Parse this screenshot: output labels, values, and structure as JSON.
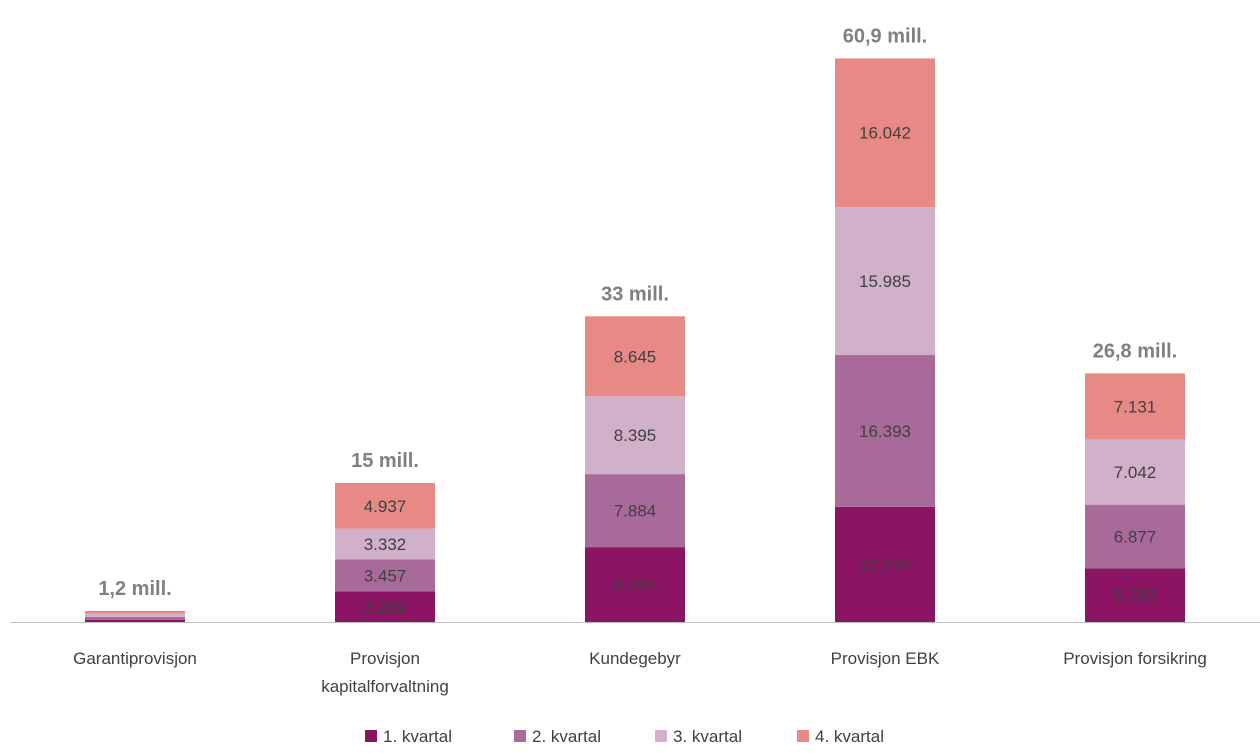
{
  "chart_data": {
    "type": "bar",
    "stacked": true,
    "categories": [
      "Garantiprovisjon",
      "Provisjon kapitalforvaltning",
      "Kundegebyr",
      "Provisjon EBK",
      "Provisjon forsikring"
    ],
    "category_label_lines": [
      [
        "Garantiprovisjon"
      ],
      [
        "Provisjon",
        "kapitalforvaltning"
      ],
      [
        "Kundegebyr"
      ],
      [
        "Provisjon EBK"
      ],
      [
        "Provisjon forsikring"
      ]
    ],
    "series": [
      {
        "name": "1. kvartal",
        "color": "#8b1464",
        "values": [
          250,
          3289,
          8084,
          12430,
          5793
        ],
        "labels": [
          "",
          "3.289",
          "8.084",
          "12.430",
          "5.793"
        ]
      },
      {
        "name": "2. kvartal",
        "color": "#a86a99",
        "values": [
          300,
          3457,
          7884,
          16393,
          6877
        ],
        "labels": [
          "",
          "3.457",
          "7.884",
          "16.393",
          "6.877"
        ]
      },
      {
        "name": "3. kvartal",
        "color": "#d1b0ca",
        "values": [
          350,
          3332,
          8395,
          15985,
          7042
        ],
        "labels": [
          "",
          "3.332",
          "8.395",
          "15.985",
          "7.042"
        ]
      },
      {
        "name": "4. kvartal",
        "color": "#e78a86",
        "values": [
          300,
          4937,
          8645,
          16042,
          7131
        ],
        "labels": [
          "",
          "4.937",
          "8.645",
          "16.042",
          "7.131"
        ]
      }
    ],
    "totals": [
      "1,2 mill.",
      "15 mill.",
      "33 mill.",
      "60,9 mill.",
      "26,8 mill."
    ],
    "ylim": [
      0,
      61000
    ],
    "grid": false,
    "legend": "bottom",
    "axis_color": "#bfbfbf",
    "label_color": "#404040",
    "total_color": "#7f7f7f"
  }
}
